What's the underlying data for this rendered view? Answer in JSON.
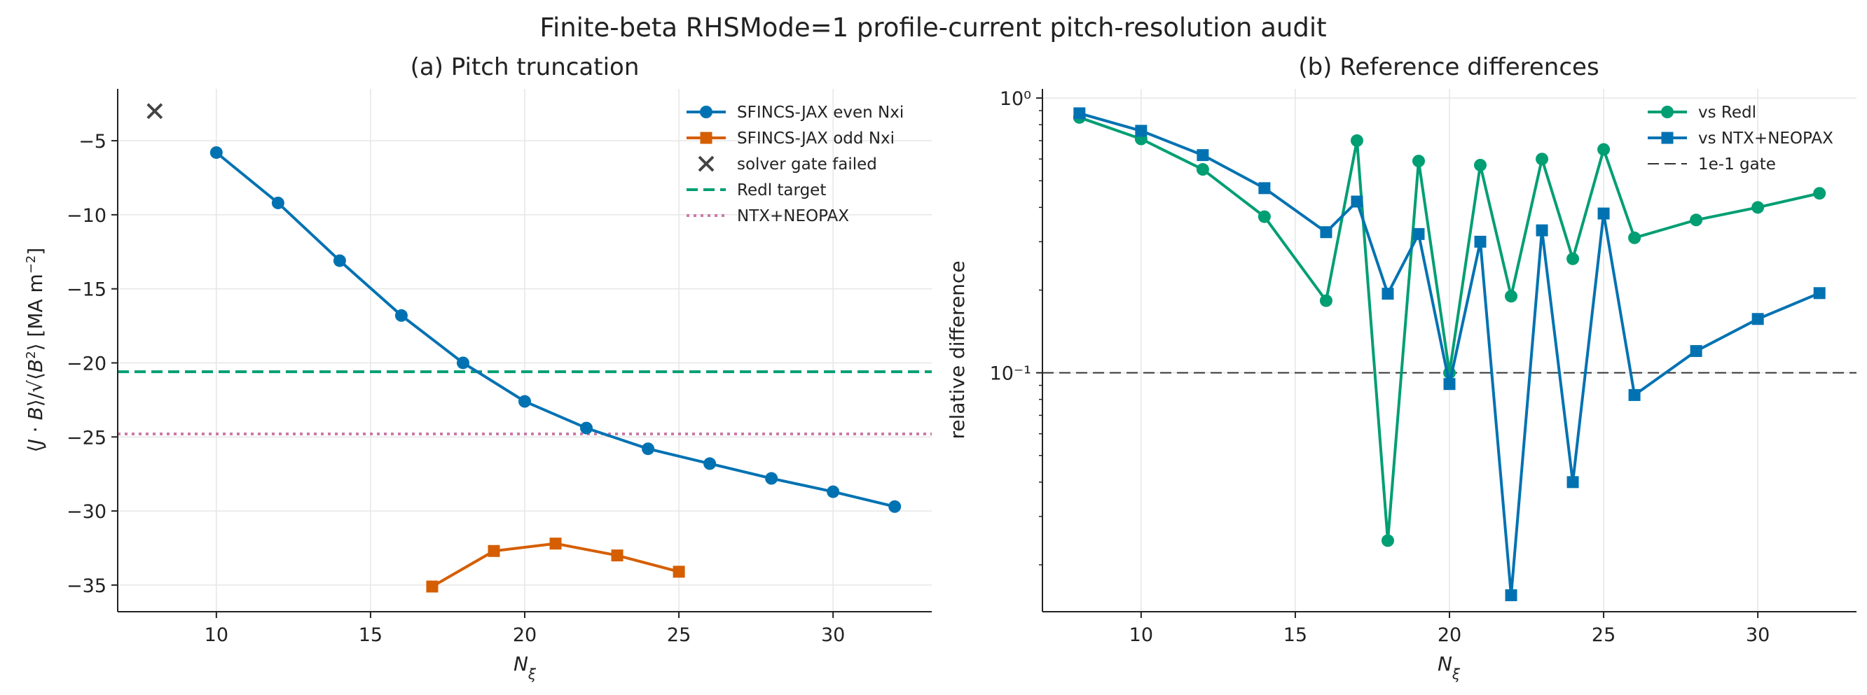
{
  "title": "Finite-beta RHSMode=1 profile-current pitch-resolution audit",
  "chart_data": [
    {
      "type": "line",
      "title": "(a) Pitch truncation",
      "xlabel": "N_ξ",
      "ylabel": "⟨J·B⟩/√⟨B²⟩ [MA m⁻²]",
      "xlim": [
        6.8,
        33.2
      ],
      "ylim": [
        -36.8,
        -1.5
      ],
      "x_ticks": [
        10,
        15,
        20,
        25,
        30
      ],
      "y_ticks": [
        -5,
        -10,
        -15,
        -20,
        -25,
        -30,
        -35
      ],
      "grid": true,
      "legend_position": "top-right",
      "series": [
        {
          "name": "SFINCS-JAX even Nxi",
          "color": "#0072b2",
          "marker": "circle",
          "x": [
            10,
            12,
            14,
            16,
            18,
            20,
            22,
            24,
            26,
            28,
            30,
            32
          ],
          "y": [
            -5.8,
            -9.2,
            -13.1,
            -16.8,
            -20.0,
            -22.6,
            -24.4,
            -25.8,
            -26.8,
            -27.8,
            -28.7,
            -29.7
          ]
        },
        {
          "name": "SFINCS-JAX odd Nxi",
          "color": "#d55e00",
          "marker": "square",
          "x": [
            17,
            19,
            21,
            23,
            25
          ],
          "y": [
            -35.1,
            -32.7,
            -32.2,
            -33.0,
            -34.1
          ]
        },
        {
          "name": "solver gate failed",
          "color": "#444444",
          "marker": "x",
          "x": [
            8
          ],
          "y": [
            -3.0
          ]
        }
      ],
      "reference_lines": [
        {
          "name": "Redl target",
          "y": -20.6,
          "color": "#009e73",
          "style": "dashed"
        },
        {
          "name": "NTX+NEOPAX",
          "y": -24.8,
          "color": "#cc79a7",
          "style": "dotted"
        }
      ]
    },
    {
      "type": "line",
      "title": "(b) Reference differences",
      "xlabel": "N_ξ",
      "ylabel": "relative difference",
      "yscale": "log",
      "xlim": [
        6.8,
        33.2
      ],
      "ylim": [
        0.0135,
        1.08
      ],
      "x_ticks": [
        10,
        15,
        20,
        25,
        30
      ],
      "y_ticks": [
        "10⁰",
        "10⁻¹"
      ],
      "grid": true,
      "legend_position": "top-right",
      "series": [
        {
          "name": "vs Redl",
          "color": "#009e73",
          "marker": "circle",
          "x": [
            8,
            10,
            12,
            14,
            16,
            17,
            18,
            19,
            20,
            21,
            22,
            23,
            24,
            25,
            26,
            28,
            30,
            32
          ],
          "y": [
            0.85,
            0.71,
            0.55,
            0.37,
            0.183,
            0.7,
            0.0245,
            0.59,
            0.1,
            0.57,
            0.19,
            0.6,
            0.26,
            0.65,
            0.31,
            0.36,
            0.4,
            0.45
          ]
        },
        {
          "name": "vs NTX+NEOPAX",
          "color": "#0072b2",
          "marker": "square",
          "x": [
            8,
            10,
            12,
            14,
            16,
            17,
            18,
            19,
            20,
            21,
            22,
            23,
            24,
            25,
            26,
            28,
            30,
            32
          ],
          "y": [
            0.88,
            0.76,
            0.62,
            0.47,
            0.325,
            0.42,
            0.194,
            0.32,
            0.091,
            0.3,
            0.0155,
            0.33,
            0.04,
            0.38,
            0.083,
            0.12,
            0.157,
            0.195
          ]
        }
      ],
      "reference_lines": [
        {
          "name": "1e-1 gate",
          "y": 0.1,
          "color": "#333333",
          "style": "dashed"
        }
      ]
    }
  ]
}
